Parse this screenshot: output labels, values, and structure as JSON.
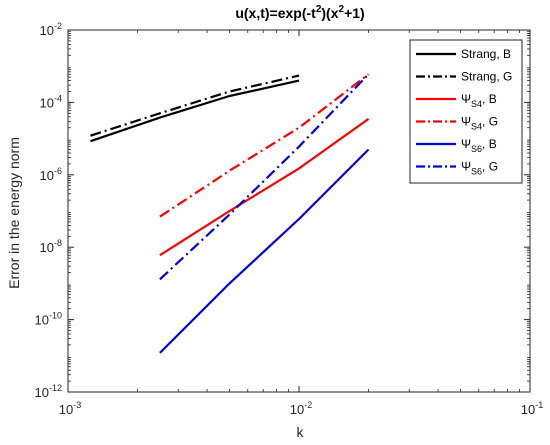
{
  "chart_data": {
    "type": "line",
    "title_parts": [
      "u(x,t)=exp(-t",
      "2",
      ")(x",
      "2",
      "+1)"
    ],
    "xlabel": "k",
    "ylabel": "Error in the energy norm",
    "xscale": "log",
    "yscale": "log",
    "xlim": [
      0.001,
      0.1
    ],
    "ylim": [
      1e-12,
      0.01
    ],
    "x_ticks": [
      0.001,
      0.01,
      0.1
    ],
    "y_ticks": [
      1e-12,
      1e-10,
      1e-08,
      1e-06,
      0.0001,
      0.01
    ],
    "grid": false,
    "legend_position": "top-right",
    "series": [
      {
        "name": "Strang, B",
        "legend_base": "Strang",
        "legend_sub": "",
        "legend_suffix": ", B",
        "color": "#000000",
        "dash": "solid",
        "x": [
          0.00125,
          0.0025,
          0.005,
          0.01
        ],
        "y": [
          8.5e-06,
          3.8e-05,
          0.00015,
          0.0004
        ]
      },
      {
        "name": "Strang, G",
        "legend_base": "Strang",
        "legend_sub": "",
        "legend_suffix": ", G",
        "color": "#000000",
        "dash": "dashdot",
        "x": [
          0.00125,
          0.0025,
          0.005,
          0.01
        ],
        "y": [
          1.2e-05,
          5e-05,
          0.0002,
          0.00055
        ]
      },
      {
        "name": "Ψ S4, B",
        "legend_base": "Ψ",
        "legend_sub": "S4",
        "legend_suffix": ", B",
        "color": "#ff0000",
        "dash": "solid",
        "x": [
          0.0025,
          0.005,
          0.01,
          0.02
        ],
        "y": [
          6e-09,
          1e-07,
          1.5e-06,
          3.5e-05
        ]
      },
      {
        "name": "Ψ S4, G",
        "legend_base": "Ψ",
        "legend_sub": "S4",
        "legend_suffix": ", G",
        "color": "#ff0000",
        "dash": "dashdot",
        "x": [
          0.0025,
          0.005,
          0.01,
          0.02
        ],
        "y": [
          7e-08,
          1.3e-06,
          2e-05,
          0.0006
        ]
      },
      {
        "name": "Ψ S6, B",
        "legend_base": "Ψ",
        "legend_sub": "S6",
        "legend_suffix": ", B",
        "color": "#0000dd",
        "dash": "solid",
        "x": [
          0.0025,
          0.005,
          0.01,
          0.02
        ],
        "y": [
          1.2e-11,
          1e-09,
          6e-08,
          5e-06
        ]
      },
      {
        "name": "Ψ S6, G",
        "legend_base": "Ψ",
        "legend_sub": "S6",
        "legend_suffix": ", G",
        "color": "#0000dd",
        "dash": "dashdot",
        "x": [
          0.0025,
          0.005,
          0.01,
          0.02
        ],
        "y": [
          1.3e-09,
          8e-08,
          6e-06,
          0.0006
        ]
      }
    ]
  }
}
